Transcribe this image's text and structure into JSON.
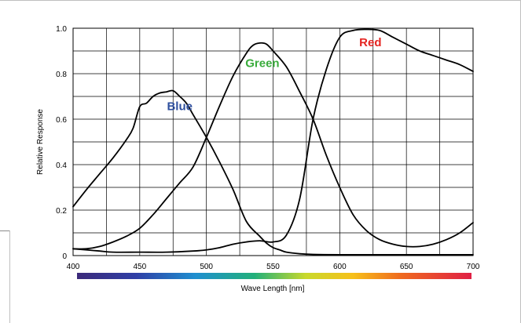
{
  "chart_data": {
    "type": "line",
    "xlabel": "Wave Length [nm]",
    "ylabel": "Relative Response",
    "xlim": [
      400,
      700
    ],
    "ylim": [
      0,
      1.0
    ],
    "x_ticks": [
      "400",
      "450",
      "500",
      "550",
      "600",
      "650",
      "700"
    ],
    "y_ticks": [
      "0",
      "0.2",
      "0.4",
      "0.6",
      "0.8",
      "1.0"
    ],
    "grid": true,
    "series": [
      {
        "name": "Blue",
        "color": "#2e4f9e",
        "label_at": [
          480,
          0.64
        ],
        "points": [
          [
            400,
            0.215
          ],
          [
            410,
            0.29
          ],
          [
            420,
            0.36
          ],
          [
            430,
            0.43
          ],
          [
            440,
            0.51
          ],
          [
            445,
            0.56
          ],
          [
            450,
            0.655
          ],
          [
            455,
            0.67
          ],
          [
            460,
            0.7
          ],
          [
            465,
            0.715
          ],
          [
            470,
            0.72
          ],
          [
            475,
            0.725
          ],
          [
            480,
            0.7
          ],
          [
            485,
            0.67
          ],
          [
            490,
            0.62
          ],
          [
            500,
            0.52
          ],
          [
            510,
            0.41
          ],
          [
            520,
            0.29
          ],
          [
            530,
            0.15
          ],
          [
            540,
            0.085
          ],
          [
            545,
            0.055
          ],
          [
            550,
            0.035
          ],
          [
            555,
            0.025
          ],
          [
            560,
            0.015
          ],
          [
            570,
            0.008
          ],
          [
            580,
            0.005
          ],
          [
            600,
            0.004
          ],
          [
            650,
            0.004
          ],
          [
            700,
            0.004
          ]
        ]
      },
      {
        "name": "Green",
        "color": "#3aac3c",
        "label_at": [
          542,
          0.83
        ],
        "points": [
          [
            400,
            0.03
          ],
          [
            410,
            0.03
          ],
          [
            420,
            0.04
          ],
          [
            430,
            0.06
          ],
          [
            440,
            0.085
          ],
          [
            450,
            0.12
          ],
          [
            460,
            0.18
          ],
          [
            470,
            0.25
          ],
          [
            480,
            0.32
          ],
          [
            490,
            0.39
          ],
          [
            500,
            0.52
          ],
          [
            510,
            0.66
          ],
          [
            520,
            0.79
          ],
          [
            530,
            0.89
          ],
          [
            535,
            0.925
          ],
          [
            540,
            0.935
          ],
          [
            545,
            0.93
          ],
          [
            550,
            0.9
          ],
          [
            560,
            0.83
          ],
          [
            570,
            0.72
          ],
          [
            580,
            0.6
          ],
          [
            590,
            0.44
          ],
          [
            600,
            0.3
          ],
          [
            610,
            0.18
          ],
          [
            620,
            0.11
          ],
          [
            630,
            0.07
          ],
          [
            640,
            0.05
          ],
          [
            650,
            0.04
          ],
          [
            660,
            0.04
          ],
          [
            670,
            0.05
          ],
          [
            680,
            0.07
          ],
          [
            690,
            0.1
          ],
          [
            700,
            0.145
          ]
        ]
      },
      {
        "name": "Red",
        "color": "#e52521",
        "label_at": [
          623,
          0.92
        ],
        "points": [
          [
            400,
            0.03
          ],
          [
            410,
            0.025
          ],
          [
            420,
            0.02
          ],
          [
            430,
            0.015
          ],
          [
            450,
            0.015
          ],
          [
            470,
            0.015
          ],
          [
            490,
            0.02
          ],
          [
            500,
            0.025
          ],
          [
            510,
            0.035
          ],
          [
            520,
            0.05
          ],
          [
            530,
            0.06
          ],
          [
            540,
            0.065
          ],
          [
            550,
            0.06
          ],
          [
            560,
            0.09
          ],
          [
            570,
            0.25
          ],
          [
            580,
            0.6
          ],
          [
            590,
            0.82
          ],
          [
            600,
            0.96
          ],
          [
            610,
            0.99
          ],
          [
            620,
            0.995
          ],
          [
            630,
            0.99
          ],
          [
            640,
            0.96
          ],
          [
            650,
            0.93
          ],
          [
            660,
            0.9
          ],
          [
            670,
            0.88
          ],
          [
            680,
            0.86
          ],
          [
            690,
            0.84
          ],
          [
            700,
            0.81
          ]
        ]
      }
    ]
  }
}
